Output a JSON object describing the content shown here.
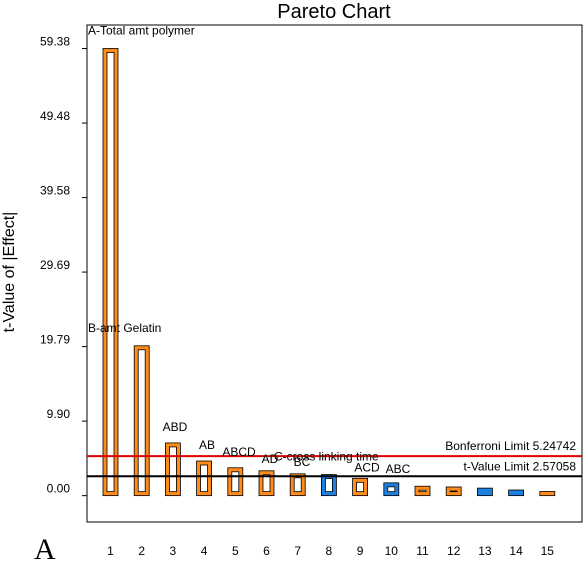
{
  "chart_data": {
    "type": "bar",
    "title": "Pareto Chart",
    "xlabel": "",
    "ylabel": "t-Value of |Effect|",
    "panel_label": "A",
    "categories": [
      "1",
      "2",
      "3",
      "4",
      "5",
      "6",
      "7",
      "8",
      "9",
      "10",
      "11",
      "12",
      "13",
      "14",
      "15"
    ],
    "bars": [
      {
        "rank": "1",
        "label": "A-Total amt polymer",
        "value": 59.38,
        "sign": "positive"
      },
      {
        "rank": "2",
        "label": "B-amt Gelatin",
        "value": 19.9,
        "sign": "positive"
      },
      {
        "rank": "3",
        "label": "ABD",
        "value": 7.0,
        "sign": "positive"
      },
      {
        "rank": "4",
        "label": "AB",
        "value": 4.6,
        "sign": "positive"
      },
      {
        "rank": "5",
        "label": "ABCD",
        "value": 3.7,
        "sign": "positive"
      },
      {
        "rank": "6",
        "label": "AD",
        "value": 3.3,
        "sign": "positive"
      },
      {
        "rank": "7",
        "label": "BC",
        "value": 2.9,
        "sign": "positive"
      },
      {
        "rank": "8",
        "label": "C-cross linking time",
        "value": 2.8,
        "sign": "negative"
      },
      {
        "rank": "9",
        "label": "ACD",
        "value": 2.3,
        "sign": "positive"
      },
      {
        "rank": "10",
        "label": "ABC",
        "value": 1.7,
        "sign": "negative"
      },
      {
        "rank": "11",
        "label": "",
        "value": 1.25,
        "sign": "positive"
      },
      {
        "rank": "12",
        "label": "",
        "value": 1.15,
        "sign": "positive"
      },
      {
        "rank": "13",
        "label": "",
        "value": 1.0,
        "sign": "negative"
      },
      {
        "rank": "14",
        "label": "",
        "value": 0.75,
        "sign": "negative"
      },
      {
        "rank": "15",
        "label": "",
        "value": 0.55,
        "sign": "positive"
      }
    ],
    "yticks": [
      "0.00",
      "9.90",
      "19.79",
      "29.69",
      "39.58",
      "49.48",
      "59.38"
    ],
    "ylim": [
      -3.5,
      62.5
    ],
    "limits": [
      {
        "name": "Bonferroni Limit 5.24742",
        "value": 5.24742,
        "color": "#e00000"
      },
      {
        "name": "t-Value Limit 2.57058",
        "value": 2.57058,
        "color": "#000000"
      }
    ],
    "colors": {
      "positive": "#ff8c1a",
      "negative": "#1f7fe0"
    },
    "grid": false,
    "legend": "none"
  }
}
